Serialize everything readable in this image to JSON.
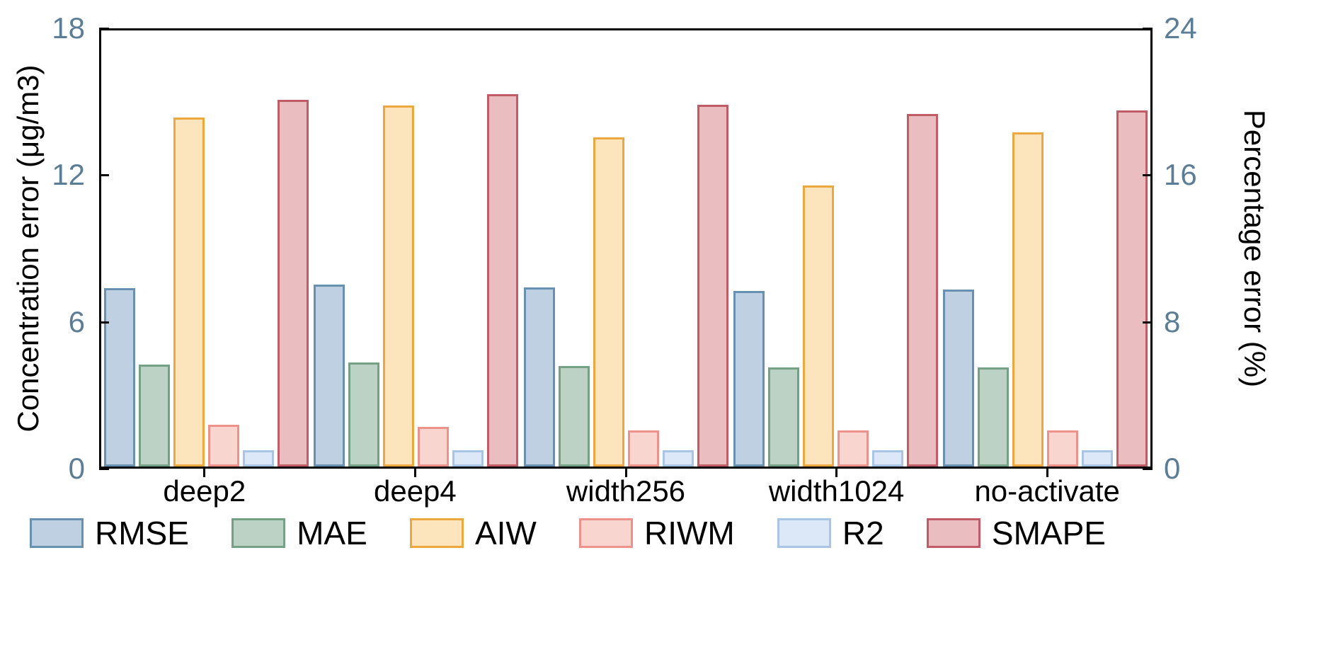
{
  "chart_data": {
    "type": "bar",
    "categories": [
      "deep2",
      "deep4",
      "width256",
      "width1024",
      "no-activate"
    ],
    "series": [
      {
        "name": "RMSE",
        "axis": "left",
        "fill": "#bed0e2",
        "edge": "#6890b1",
        "values": [
          7.35,
          7.5,
          7.4,
          7.25,
          7.3
        ]
      },
      {
        "name": "MAE",
        "axis": "left",
        "fill": "#bcd2c5",
        "edge": "#74a186",
        "values": [
          4.2,
          4.3,
          4.15,
          4.1,
          4.1
        ]
      },
      {
        "name": "AIW",
        "axis": "left",
        "fill": "#fce5bd",
        "edge": "#eda73f",
        "values": [
          14.4,
          14.9,
          13.6,
          11.6,
          13.8
        ]
      },
      {
        "name": "RIWM",
        "axis": "right",
        "fill": "#f9d5d0",
        "edge": "#ec928a",
        "values": [
          2.3,
          2.2,
          2.0,
          2.0,
          2.0
        ]
      },
      {
        "name": "R2",
        "axis": "right",
        "fill": "#dce8f7",
        "edge": "#a9c5e5",
        "values": [
          0.9,
          0.9,
          0.9,
          0.9,
          0.9
        ]
      },
      {
        "name": "SMAPE",
        "axis": "right",
        "fill": "#eabdc1",
        "edge": "#c05c66",
        "values": [
          20.2,
          20.5,
          19.9,
          19.4,
          19.6
        ]
      }
    ],
    "left_axis": {
      "label": "Concentration error (μg/m3)",
      "ticks": [
        18,
        12,
        6,
        0
      ],
      "max": 18
    },
    "right_axis": {
      "label": "Percentage error (%)",
      "ticks": [
        24,
        16,
        8,
        0
      ],
      "max": 24
    },
    "tick_label_color": "#5b7d95",
    "axis_color": "#000000",
    "legend_position": "bottom",
    "grid": false
  }
}
